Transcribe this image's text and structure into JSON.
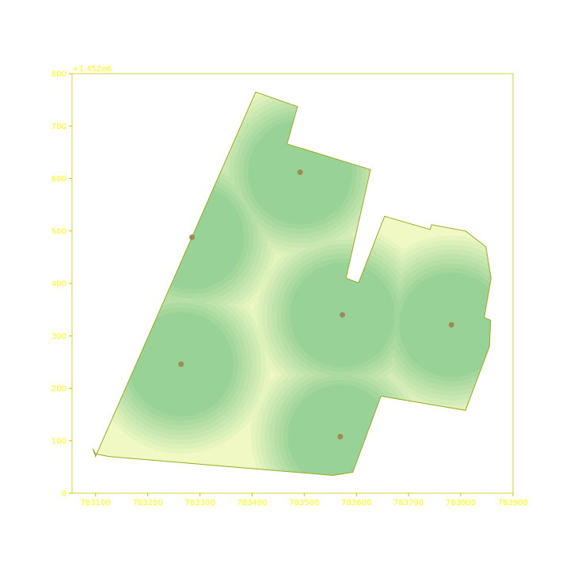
{
  "chart_data": {
    "type": "heatmap",
    "title": "",
    "xlabel": "",
    "ylabel": "",
    "offset_label": "+1.452e6",
    "xlim": [
      783055,
      783900
    ],
    "ylim": [
      0,
      800
    ],
    "x_ticks": [
      783100,
      783200,
      783300,
      783400,
      783500,
      783600,
      783700,
      783800,
      783900
    ],
    "x_tick_labels": [
      "783100",
      "783200",
      "783300",
      "783400",
      "783500",
      "783600",
      "783700",
      "783800",
      "783900"
    ],
    "y_ticks": [
      0,
      100,
      200,
      300,
      400,
      500,
      600,
      700,
      800
    ],
    "y_tick_labels": [
      "0",
      "100",
      "200",
      "300",
      "400",
      "500",
      "600",
      "700",
      "800"
    ],
    "grid": false,
    "boundary": [
      [
        783100,
        70
      ],
      [
        783095,
        85
      ],
      [
        783100,
        75
      ],
      [
        783125,
        70
      ],
      [
        783555,
        34
      ],
      [
        783593,
        40
      ],
      [
        783647,
        185
      ],
      [
        783809,
        158
      ],
      [
        783855,
        280
      ],
      [
        783857,
        330
      ],
      [
        783845,
        335
      ],
      [
        783858,
        410
      ],
      [
        783848,
        470
      ],
      [
        783809,
        500
      ],
      [
        783744,
        512
      ],
      [
        783741,
        503
      ],
      [
        783654,
        528
      ],
      [
        783604,
        401
      ],
      [
        783580,
        410
      ],
      [
        783627,
        617
      ],
      [
        783467,
        666
      ],
      [
        783487,
        737
      ],
      [
        783407,
        765
      ]
    ],
    "centers": [
      {
        "x": 783492,
        "y": 612
      },
      {
        "x": 783285,
        "y": 488
      },
      {
        "x": 783573,
        "y": 340
      },
      {
        "x": 783782,
        "y": 321
      },
      {
        "x": 783264,
        "y": 246
      },
      {
        "x": 783569,
        "y": 108
      }
    ],
    "plateau_radius": 100,
    "falloff_radius": 180,
    "colors": {
      "axis": "#c8c800",
      "tick_text": "#ffff00",
      "boundary": "#9aaa1e",
      "center": "#9c8b55",
      "high": "#98d296",
      "low": "#f0f8c4"
    }
  }
}
